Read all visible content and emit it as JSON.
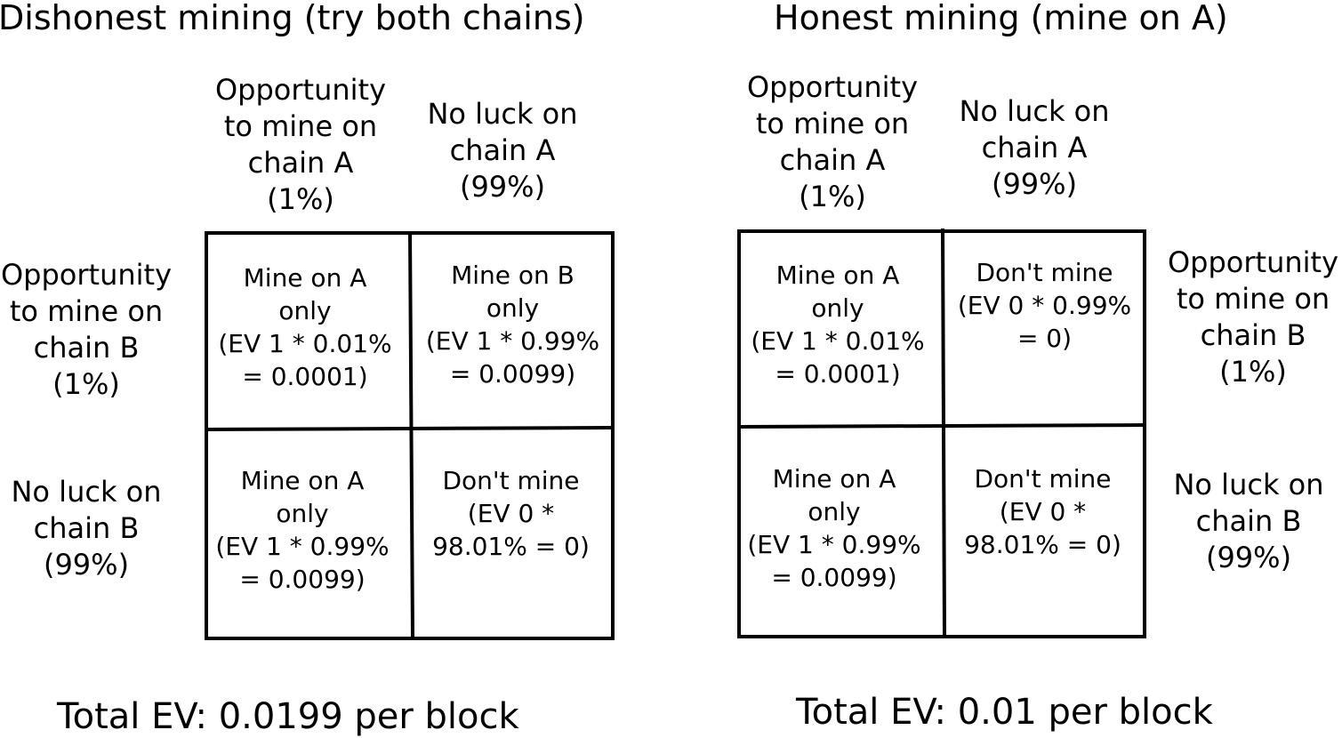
{
  "left": {
    "title": "Dishonest mining (try both chains)",
    "col_headers": [
      [
        "Opportunity",
        "to mine on",
        "chain A",
        "(1%)"
      ],
      [
        "No luck on",
        "chain A",
        "(99%)"
      ]
    ],
    "row_headers": [
      [
        "Opportunity",
        "to mine on",
        "chain B",
        "(1%)"
      ],
      [
        "No luck on",
        "chain B",
        "(99%)"
      ]
    ],
    "cells": [
      [
        "Mine on A",
        "only",
        "(EV 1 * 0.01%",
        "= 0.0001)"
      ],
      [
        "Mine on B",
        "only",
        "(EV 1 * 0.99%",
        "= 0.0099)"
      ],
      [
        "Mine on A",
        "only",
        "(EV 1 * 0.99%",
        "= 0.0099)"
      ],
      [
        "Don't mine",
        "(EV 0 *",
        "98.01% = 0)"
      ]
    ],
    "total": "Total EV: 0.0199 per block"
  },
  "right": {
    "title": "Honest mining (mine on A)",
    "col_headers": [
      [
        "Opportunity",
        "to mine on",
        "chain A",
        "(1%)"
      ],
      [
        "No luck on",
        "chain A",
        "(99%)"
      ]
    ],
    "row_headers": [
      [
        "Opportunity",
        "to mine on",
        "chain B",
        "(1%)"
      ],
      [
        "No luck on",
        "chain B",
        "(99%)"
      ]
    ],
    "cells": [
      [
        "Mine on A",
        "only",
        "(EV 1 * 0.01%",
        "= 0.0001)"
      ],
      [
        "Don't mine",
        "(EV 0 * 0.99%",
        "= 0)"
      ],
      [
        "Mine on A",
        "only",
        "(EV 1 * 0.99%",
        "= 0.0099)"
      ],
      [
        "Don't mine",
        "(EV 0 *",
        "98.01% = 0)"
      ]
    ],
    "total": "Total EV: 0.01 per block"
  }
}
